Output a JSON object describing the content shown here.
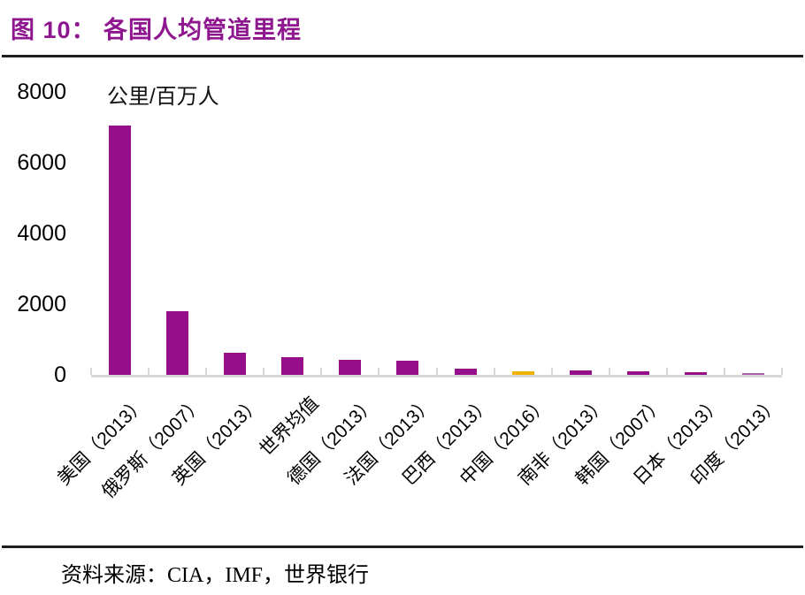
{
  "page": {
    "figure_title": "图 10：  各国人均管道里程",
    "source_label": "资料来源：CIA，IMF，世界银行"
  },
  "chart_data": {
    "type": "bar",
    "title": "各国人均管道里程",
    "figure_number": "图 10",
    "unit_label": "公里/百万人",
    "categories": [
      "美国（2013）",
      "俄罗斯（2007）",
      "英国（2013）",
      "世界均值",
      "德国（2013）",
      "法国（2013）",
      "巴西（2013）",
      "中国（2016）",
      "南非（2013）",
      "韩国（2007）",
      "日本（2013）",
      "印度（2013）"
    ],
    "values": [
      7050,
      1800,
      620,
      500,
      430,
      390,
      170,
      100,
      120,
      95,
      80,
      50
    ],
    "bar_colors": [
      "#970E8C",
      "#970E8C",
      "#970E8C",
      "#970E8C",
      "#970E8C",
      "#970E8C",
      "#970E8C",
      "#F0B100",
      "#970E8C",
      "#970E8C",
      "#970E8C",
      "#AE5FA9"
    ],
    "xlabel": "",
    "ylabel": "公里/百万人",
    "ylim": [
      0,
      8000
    ],
    "yticks": [
      8000,
      6000,
      4000,
      2000,
      0
    ],
    "grid": false,
    "legend": null,
    "highlight": {
      "category": "中国（2016）",
      "color": "#F0B100"
    },
    "colors": {
      "bar_default": "#970E8C",
      "bar_highlight": "#F0B100",
      "title": "#8E168E",
      "axis_line": "#D8D8D8",
      "text": "#000000",
      "rule": "#1F1F1F"
    }
  }
}
